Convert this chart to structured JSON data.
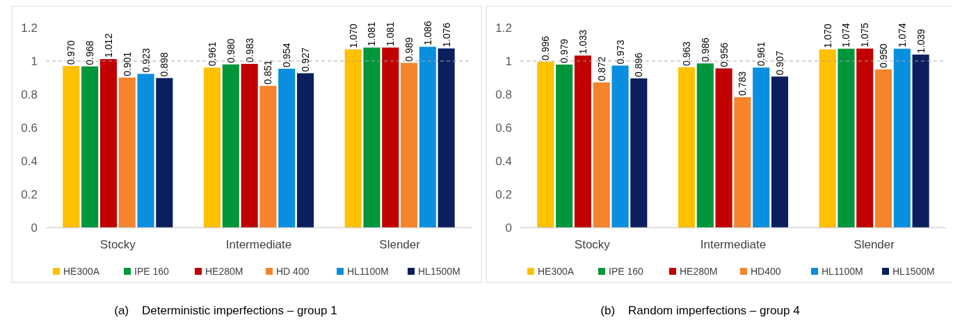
{
  "chart_data": [
    {
      "type": "bar",
      "categories": [
        "Stocky",
        "Intermediate",
        "Slender"
      ],
      "ylim": [
        0,
        1.2
      ],
      "yticks": [
        0,
        0.2,
        0.4,
        0.6,
        0.8,
        1,
        1.2
      ],
      "legend": "bottom",
      "grid": false,
      "ref_lines": [
        {
          "axis": "y",
          "value": 1,
          "color": "#a6a6a6",
          "line_style": "dashed"
        }
      ],
      "annotations": [
        "(a)    Deterministic imperfections – group 1"
      ],
      "series": [
        {
          "name": "HE300A",
          "color": "#ffc000",
          "values": [
            0.97,
            0.961,
            1.07
          ],
          "value_labels": [
            "0.970",
            "0.961",
            "1.070"
          ]
        },
        {
          "name": "IPE 160",
          "color": "#00963c",
          "values": [
            0.968,
            0.98,
            1.081
          ],
          "value_labels": [
            "0.968",
            "0.980",
            "1.081"
          ]
        },
        {
          "name": "HE280M",
          "color": "#c00000",
          "values": [
            1.012,
            0.983,
            1.081
          ],
          "value_labels": [
            "1.012",
            "0.983",
            "1.081"
          ]
        },
        {
          "name": "HD 400",
          "color": "#f5842b",
          "values": [
            0.901,
            0.851,
            0.989
          ],
          "value_labels": [
            "0.901",
            "0.851",
            "0.989"
          ]
        },
        {
          "name": "HL1100M",
          "color": "#0a8fe0",
          "values": [
            0.923,
            0.954,
            1.086
          ],
          "value_labels": [
            "0.923",
            "0.954",
            "1.086"
          ]
        },
        {
          "name": "HL1500M",
          "color": "#0b1f5e",
          "values": [
            0.898,
            0.927,
            1.076
          ],
          "value_labels": [
            "0.898",
            "0.927",
            "1.076"
          ]
        }
      ]
    },
    {
      "type": "bar",
      "categories": [
        "Stocky",
        "Intermediate",
        "Slender"
      ],
      "ylim": [
        0,
        1.2
      ],
      "yticks": [
        0,
        0.2,
        0.4,
        0.6,
        0.8,
        1,
        1.2
      ],
      "legend": "bottom",
      "grid": false,
      "ref_lines": [
        {
          "axis": "y",
          "value": 1,
          "color": "#a6a6a6",
          "line_style": "dashed"
        }
      ],
      "annotations": [
        "(b)    Random imperfections – group 4"
      ],
      "series": [
        {
          "name": "HE300A",
          "color": "#ffc000",
          "values": [
            0.996,
            0.963,
            1.07
          ],
          "value_labels": [
            "0.996",
            "0.963",
            "1.070"
          ]
        },
        {
          "name": "IPE 160",
          "color": "#00963c",
          "values": [
            0.979,
            0.986,
            1.074
          ],
          "value_labels": [
            "0.979",
            "0.986",
            "1.074"
          ]
        },
        {
          "name": "HE280M",
          "color": "#c00000",
          "values": [
            1.033,
            0.956,
            1.075
          ],
          "value_labels": [
            "1.033",
            "0.956",
            "1.075"
          ]
        },
        {
          "name": "HD400",
          "color": "#f5842b",
          "values": [
            0.872,
            0.783,
            0.95
          ],
          "value_labels": [
            "0.872",
            "0.783",
            "0.950"
          ]
        },
        {
          "name": "HL1100M",
          "color": "#0a8fe0",
          "values": [
            0.973,
            0.961,
            1.074
          ],
          "value_labels": [
            "0.973",
            "0.961",
            "1.074"
          ]
        },
        {
          "name": "HL1500M",
          "color": "#0b1f5e",
          "values": [
            0.896,
            0.907,
            1.039
          ],
          "value_labels": [
            "0.896",
            "0.907",
            "1.039"
          ]
        }
      ]
    }
  ]
}
